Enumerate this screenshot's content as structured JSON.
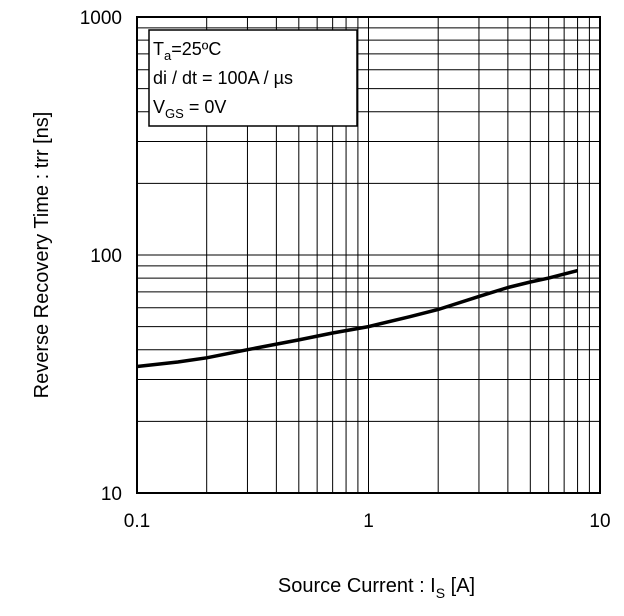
{
  "chart_data": {
    "type": "line",
    "title": "",
    "xlabel": {
      "main": "Source Current : I",
      "sub": "S",
      "unit": " [A]"
    },
    "ylabel": "Reverse Recovery Time : trr [ns]",
    "x_scale": "log",
    "y_scale": "log",
    "xlim": [
      0.1,
      10
    ],
    "ylim": [
      10,
      1000
    ],
    "grid": true,
    "x_tick_labels": [
      "0.1",
      "1",
      "10"
    ],
    "y_tick_labels": [
      "10",
      "100",
      "1000"
    ],
    "series": [
      {
        "x": [
          0.1,
          0.15,
          0.2,
          0.3,
          0.5,
          0.7,
          1.0,
          1.5,
          2.0,
          3.0,
          4.0,
          5.0,
          6.0,
          8.0
        ],
        "y": [
          34,
          35.5,
          37,
          40,
          44,
          47,
          50,
          55,
          59,
          67,
          73,
          77,
          80,
          86
        ],
        "color": "#000000"
      }
    ],
    "legend": {
      "position": "top-left",
      "line1": {
        "main": "T",
        "sub": "a",
        "rest": "=25ºC"
      },
      "line2": "di / dt = 100A / µs",
      "line3": {
        "main": "V",
        "sub": "GS",
        "rest": " = 0V"
      }
    }
  }
}
